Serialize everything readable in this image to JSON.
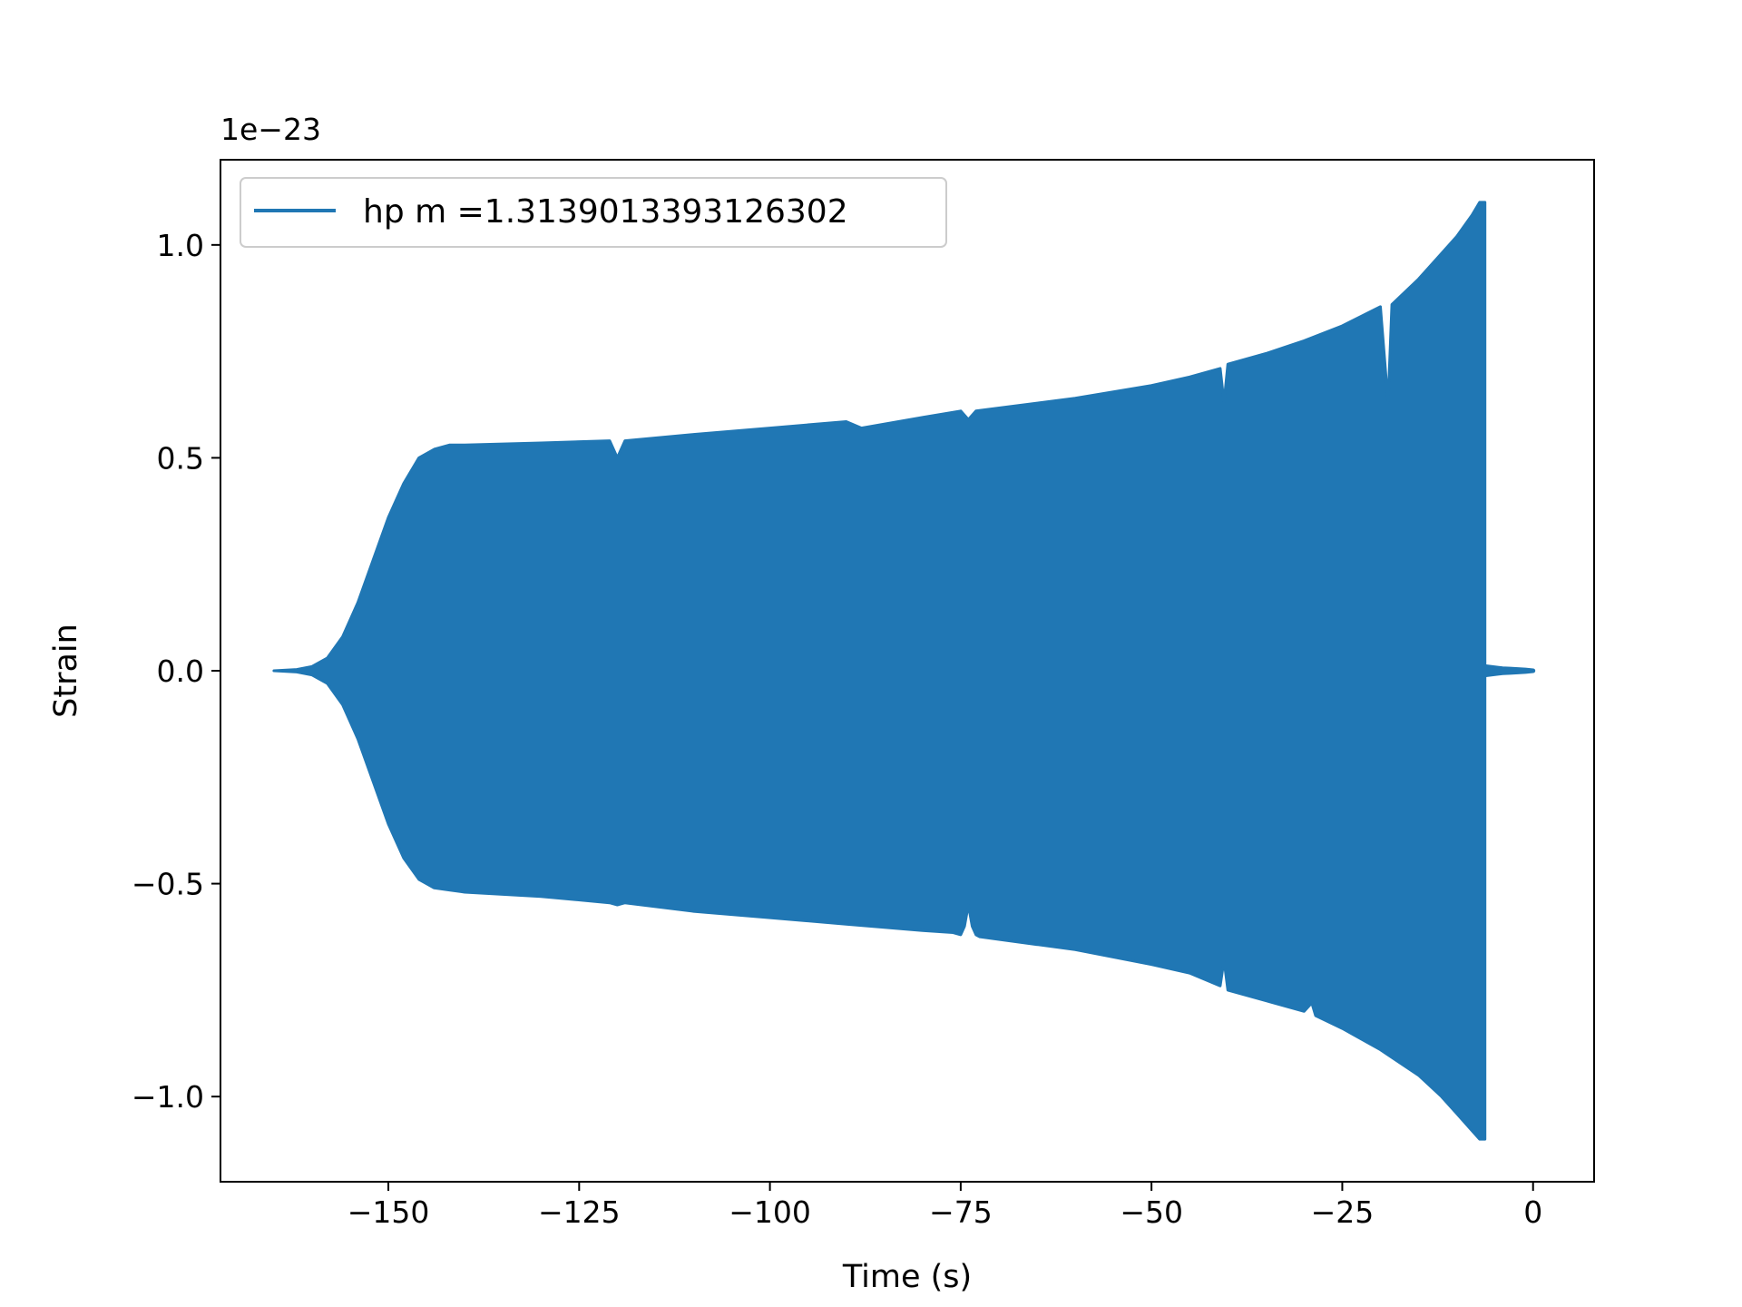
{
  "chart_data": {
    "type": "area",
    "title": "",
    "xlabel": "Time (s)",
    "ylabel": "Strain",
    "offset_text": "1e−23",
    "xlim": [
      -172,
      8
    ],
    "ylim": [
      -1.2,
      1.2
    ],
    "xticks": [
      -150,
      -125,
      -100,
      -75,
      -50,
      -25,
      0
    ],
    "xtick_labels": [
      "−150",
      "−125",
      "−100",
      "−75",
      "−50",
      "−25",
      "0"
    ],
    "yticks": [
      -1.0,
      -0.5,
      0.0,
      0.5,
      1.0
    ],
    "ytick_labels": [
      "−1.0",
      "−0.5",
      "0.0",
      "0.5",
      "1.0"
    ],
    "grid": false,
    "legend": {
      "placement": "top-left",
      "entries": [
        "hp m =1.3139013393126302"
      ]
    },
    "series": [
      {
        "name": "hp m =1.3139013393126302",
        "color": "#2077b4",
        "upper_envelope": {
          "t": [
            -165,
            -162,
            -160,
            -158,
            -156,
            -154,
            -152,
            -150,
            -148,
            -146,
            -144,
            -142,
            -140,
            -130,
            -121,
            -120,
            -119,
            -110,
            -100,
            -90,
            -88,
            -80,
            -75,
            -74,
            -73,
            -60,
            -55,
            -50,
            -45,
            -41,
            -40.5,
            -40,
            -35,
            -30,
            -25,
            -20,
            -19,
            -18.5,
            -15,
            -12,
            -10,
            -8,
            -7,
            -6.5,
            -6.3
          ],
          "h": [
            0.0,
            0.003,
            0.01,
            0.03,
            0.08,
            0.16,
            0.26,
            0.36,
            0.44,
            0.5,
            0.52,
            0.53,
            0.53,
            0.535,
            0.54,
            0.5,
            0.54,
            0.555,
            0.57,
            0.585,
            0.57,
            0.595,
            0.61,
            0.59,
            0.61,
            0.64,
            0.655,
            0.67,
            0.69,
            0.71,
            0.63,
            0.72,
            0.745,
            0.775,
            0.81,
            0.855,
            0.63,
            0.86,
            0.92,
            0.98,
            1.02,
            1.07,
            1.1,
            1.1,
            1.1
          ]
        },
        "lower_envelope": {
          "t": [
            -165,
            -162,
            -160,
            -158,
            -156,
            -154,
            -152,
            -150,
            -148,
            -146,
            -144,
            -142,
            -140,
            -130,
            -121,
            -120,
            -119,
            -110,
            -100,
            -90,
            -80,
            -76,
            -75,
            -74.5,
            -74,
            -73.5,
            -73,
            -72.5,
            -60,
            -50,
            -45,
            -41,
            -40.5,
            -40,
            -35,
            -30,
            -29,
            -28.5,
            -25,
            -20,
            -15,
            -12,
            -10,
            -8,
            -7,
            -6.5,
            -6.3
          ],
          "h": [
            0.0,
            -0.003,
            -0.01,
            -0.03,
            -0.08,
            -0.16,
            -0.26,
            -0.36,
            -0.44,
            -0.49,
            -0.51,
            -0.515,
            -0.52,
            -0.53,
            -0.545,
            -0.55,
            -0.545,
            -0.565,
            -0.58,
            -0.595,
            -0.61,
            -0.615,
            -0.62,
            -0.6,
            -0.55,
            -0.6,
            -0.62,
            -0.625,
            -0.655,
            -0.69,
            -0.71,
            -0.74,
            -0.68,
            -0.75,
            -0.775,
            -0.8,
            -0.78,
            -0.81,
            -0.84,
            -0.89,
            -0.95,
            -1.0,
            -1.04,
            -1.08,
            -1.1,
            -1.1,
            -1.1
          ]
        },
        "tail": {
          "t": [
            -6.3,
            -5,
            -4,
            -3,
            -2,
            -1,
            0
          ],
          "h": [
            0.01,
            0.007,
            0.005,
            0.004,
            0.003,
            0.002,
            0.0
          ]
        }
      }
    ]
  }
}
